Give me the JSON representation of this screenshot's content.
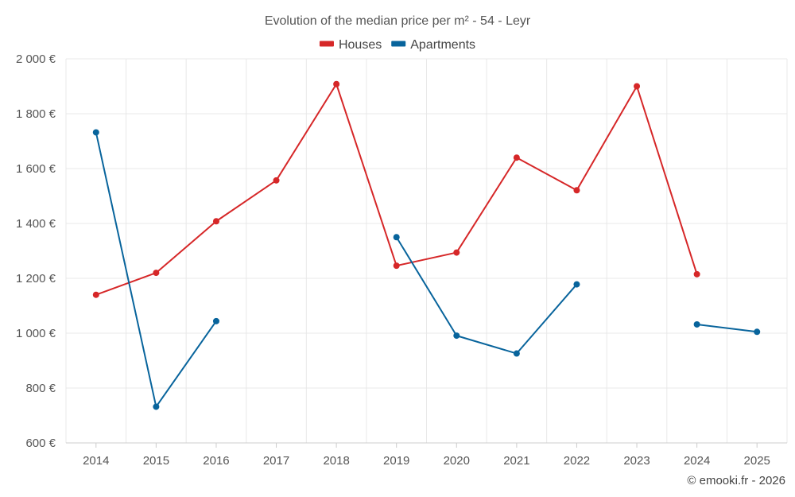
{
  "chart_data": {
    "type": "line",
    "title": "Evolution of the median price per m² - 54 - Leyr",
    "categories": [
      "2014",
      "2015",
      "2016",
      "2017",
      "2018",
      "2019",
      "2020",
      "2021",
      "2022",
      "2023",
      "2024",
      "2025"
    ],
    "ylim": [
      600,
      2000
    ],
    "yticks": [
      600,
      800,
      1000,
      1200,
      1400,
      1600,
      1800,
      2000
    ],
    "ytick_labels": [
      "600 €",
      "800 €",
      "1 000 €",
      "1 200 €",
      "1 400 €",
      "1 600 €",
      "1 800 €",
      "2 000 €"
    ],
    "grid": true,
    "legend_position": "top-center",
    "series": [
      {
        "name": "Houses",
        "color": "#d62728",
        "values": [
          1140,
          1220,
          1408,
          1557,
          1908,
          1246,
          1294,
          1640,
          1521,
          1900,
          1215,
          null
        ]
      },
      {
        "name": "Apartments",
        "color": "#08649c",
        "values": [
          1732,
          732,
          1044,
          null,
          null,
          1350,
          991,
          926,
          1178,
          null,
          1032,
          1005
        ]
      }
    ]
  },
  "credit": "© emooki.fr - 2026"
}
